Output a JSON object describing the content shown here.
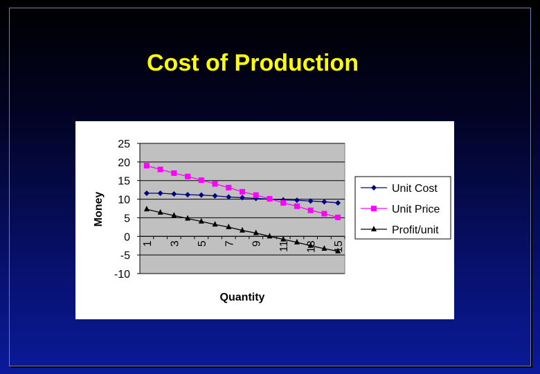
{
  "slide": {
    "title": "Cost of Production"
  },
  "chart_data": {
    "type": "line",
    "title": "",
    "xlabel": "Quantity",
    "ylabel": "Money",
    "x": [
      1,
      2,
      3,
      4,
      5,
      6,
      7,
      8,
      9,
      10,
      11,
      12,
      13,
      14,
      15
    ],
    "x_tick_labels": [
      "1",
      "3",
      "5",
      "7",
      "9",
      "11",
      "13",
      "15"
    ],
    "y_ticks": [
      25,
      20,
      15,
      10,
      5,
      0,
      -5,
      -10
    ],
    "ylim": [
      -10,
      25
    ],
    "grid": "horizontal",
    "legend_position": "right",
    "plot_background": "#c0c0c0",
    "series": [
      {
        "name": "Unit Cost",
        "marker": "diamond",
        "color": "#000080",
        "values": [
          11.6,
          11.6,
          11.4,
          11.2,
          11.1,
          10.9,
          10.6,
          10.4,
          10.2,
          10.0,
          9.8,
          9.7,
          9.5,
          9.3,
          9.0
        ]
      },
      {
        "name": "Unit Price",
        "marker": "square",
        "color": "#ff00ff",
        "values": [
          19.0,
          18.0,
          17.0,
          16.1,
          15.1,
          14.1,
          13.1,
          12.0,
          11.1,
          10.1,
          9.0,
          8.1,
          7.0,
          6.1,
          5.1
        ]
      },
      {
        "name": "Profit/unit",
        "marker": "triangle",
        "color": "#000000",
        "values": [
          7.3,
          6.4,
          5.6,
          4.8,
          4.0,
          3.2,
          2.5,
          1.6,
          0.9,
          0.0,
          -0.8,
          -1.6,
          -2.5,
          -3.3,
          -4.0
        ]
      }
    ]
  }
}
